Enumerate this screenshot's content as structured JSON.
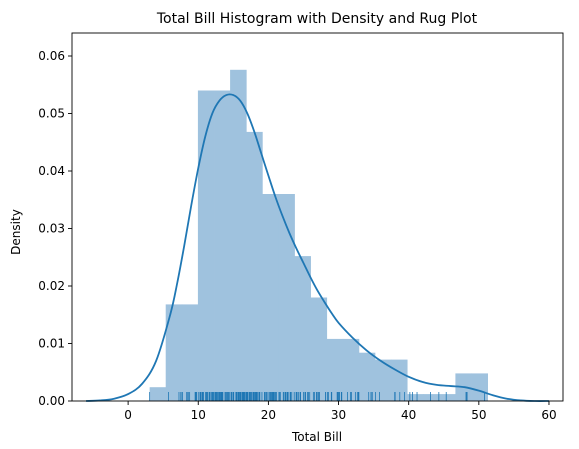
{
  "chart_data": {
    "type": "bar",
    "title": "Total Bill Histogram with Density and Rug Plot",
    "xlabel": "Total Bill",
    "ylabel": "Density",
    "xlim": [
      -8,
      62
    ],
    "ylim": [
      0,
      0.064
    ],
    "xticks": [
      0,
      10,
      20,
      30,
      40,
      50,
      60
    ],
    "yticks": [
      0.0,
      0.01,
      0.02,
      0.03,
      0.04,
      0.05,
      0.06
    ],
    "ytick_labels": [
      "0.00",
      "0.01",
      "0.02",
      "0.03",
      "0.04",
      "0.05",
      "0.06"
    ],
    "grid": false,
    "histogram": {
      "color": "#9fc2de",
      "bins": [
        {
          "x0": 3.07,
          "x1": 5.36,
          "density": 0.0024
        },
        {
          "x0": 5.36,
          "x1": 7.66,
          "density": 0.0168
        },
        {
          "x0": 7.66,
          "x1": 9.95,
          "density": 0.0168
        },
        {
          "x0": 9.95,
          "x1": 12.25,
          "density": 0.054
        },
        {
          "x0": 12.25,
          "x1": 14.54,
          "density": 0.054
        },
        {
          "x0": 14.54,
          "x1": 16.84,
          "density": 0.0576
        },
        {
          "x0": 16.84,
          "x1": 19.13,
          "density": 0.0468
        },
        {
          "x0": 19.13,
          "x1": 21.43,
          "density": 0.036
        },
        {
          "x0": 21.43,
          "x1": 23.72,
          "density": 0.036
        },
        {
          "x0": 23.72,
          "x1": 26.01,
          "density": 0.0252
        },
        {
          "x0": 26.01,
          "x1": 28.31,
          "density": 0.018
        },
        {
          "x0": 28.31,
          "x1": 30.6,
          "density": 0.0108
        },
        {
          "x0": 30.6,
          "x1": 32.9,
          "density": 0.0108
        },
        {
          "x0": 32.9,
          "x1": 35.19,
          "density": 0.0084
        },
        {
          "x0": 35.19,
          "x1": 37.49,
          "density": 0.0072
        },
        {
          "x0": 37.49,
          "x1": 39.78,
          "density": 0.0072
        },
        {
          "x0": 39.78,
          "x1": 42.08,
          "density": 0.0012
        },
        {
          "x0": 42.08,
          "x1": 44.37,
          "density": 0.0012
        },
        {
          "x0": 44.37,
          "x1": 46.66,
          "density": 0.0012
        },
        {
          "x0": 46.66,
          "x1": 48.96,
          "density": 0.0048
        },
        {
          "x0": 48.96,
          "x1": 51.25,
          "density": 0.0048
        }
      ]
    },
    "density_curve": {
      "color": "#1f77b4",
      "x": [
        -6,
        -4,
        -2,
        0,
        2,
        4,
        6,
        7,
        8,
        9,
        10,
        11,
        12,
        13,
        14,
        15,
        16,
        17,
        18,
        19,
        20,
        21,
        22,
        23,
        24,
        25,
        26,
        27,
        28,
        29,
        30,
        32,
        34,
        36,
        38,
        40,
        42,
        44,
        46,
        48,
        50,
        52,
        54,
        56,
        58,
        60
      ],
      "y": [
        0.0,
        0.0001,
        0.0004,
        0.0012,
        0.003,
        0.007,
        0.015,
        0.0205,
        0.027,
        0.034,
        0.0405,
        0.046,
        0.05,
        0.0522,
        0.0532,
        0.0532,
        0.0522,
        0.05,
        0.0468,
        0.043,
        0.0392,
        0.0355,
        0.0322,
        0.0292,
        0.0265,
        0.024,
        0.0215,
        0.0192,
        0.0172,
        0.0153,
        0.0136,
        0.011,
        0.0088,
        0.007,
        0.0055,
        0.0042,
        0.0033,
        0.0028,
        0.0026,
        0.0024,
        0.0018,
        0.001,
        0.0004,
        0.0001,
        0.0,
        0.0
      ]
    },
    "rug": {
      "color": "#1f77b4",
      "x": [
        3.07,
        5.75,
        7.25,
        7.51,
        7.56,
        7.74,
        8.35,
        8.51,
        8.52,
        8.58,
        8.77,
        9.55,
        9.6,
        9.68,
        9.78,
        10.07,
        10.27,
        10.29,
        10.33,
        10.34,
        10.51,
        10.59,
        10.63,
        10.65,
        10.77,
        11.02,
        11.17,
        11.24,
        11.35,
        11.38,
        11.59,
        11.61,
        11.69,
        11.87,
        12.02,
        12.03,
        12.16,
        12.26,
        12.43,
        12.46,
        12.54,
        12.66,
        12.74,
        12.9,
        13.0,
        13.03,
        13.13,
        13.16,
        13.27,
        13.37,
        13.39,
        13.42,
        13.51,
        13.81,
        13.94,
        14.07,
        14.15,
        14.26,
        14.31,
        14.48,
        14.52,
        14.73,
        14.78,
        14.83,
        15.01,
        15.04,
        15.06,
        15.36,
        15.38,
        15.42,
        15.48,
        15.53,
        15.69,
        15.77,
        15.81,
        15.95,
        15.98,
        16.0,
        16.04,
        16.21,
        16.27,
        16.29,
        16.31,
        16.4,
        16.45,
        16.47,
        16.58,
        16.66,
        16.82,
        16.93,
        16.97,
        16.99,
        17.07,
        17.26,
        17.29,
        17.31,
        17.46,
        17.47,
        17.51,
        17.59,
        17.78,
        17.81,
        17.82,
        17.89,
        17.92,
        18.04,
        18.15,
        18.24,
        18.26,
        18.28,
        18.29,
        18.35,
        18.43,
        18.64,
        18.69,
        18.71,
        18.78,
        19.08,
        19.44,
        19.49,
        19.65,
        19.77,
        19.81,
        19.82,
        20.08,
        20.23,
        20.27,
        20.29,
        20.45,
        20.49,
        20.53,
        20.65,
        20.69,
        20.76,
        20.9,
        20.92,
        21.01,
        21.16,
        21.5,
        21.58,
        21.7,
        22.12,
        22.23,
        22.42,
        22.49,
        22.67,
        22.76,
        22.82,
        23.1,
        23.17,
        23.33,
        23.68,
        23.95,
        24.01,
        24.06,
        24.08,
        24.27,
        24.52,
        24.55,
        24.59,
        25.0,
        25.21,
        25.28,
        25.29,
        25.56,
        25.71,
        25.89,
        26.41,
        26.59,
        26.86,
        26.88,
        27.05,
        27.18,
        27.2,
        27.28,
        28.15,
        28.17,
        28.44,
        28.55,
        28.97,
        29.03,
        29.8,
        29.85,
        29.93,
        30.06,
        30.14,
        30.4,
        30.46,
        31.27,
        31.71,
        31.85,
        32.4,
        32.68,
        32.83,
        32.9,
        34.3,
        34.63,
        34.65,
        34.81,
        35.26,
        35.83,
        38.01,
        38.07,
        38.73,
        39.42,
        40.17,
        40.55,
        41.19,
        43.11,
        44.3,
        45.35,
        48.17,
        48.27,
        48.33,
        50.81
      ]
    }
  }
}
